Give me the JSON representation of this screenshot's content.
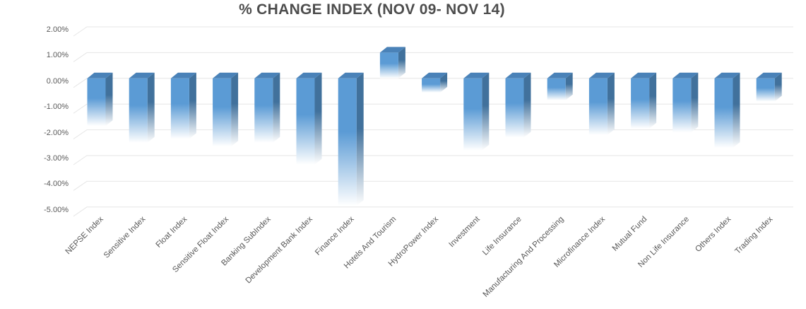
{
  "title": "% CHANGE INDEX (NOV 09- NOV 14)",
  "chart_data": {
    "type": "bar",
    "title": "% CHANGE INDEX (NOV 09- NOV 14)",
    "xlabel": "",
    "ylabel": "",
    "categories": [
      "NEPSE Index",
      "Sensitive Index",
      "Float Index",
      "Sensitive Float Index",
      "Banking SubIndex",
      "Development Bank Index",
      "Finance Index",
      "Hotels And Tourism",
      "HydroPower Index",
      "Investment",
      "Life Insurance",
      "Manufacturing And Processing",
      "Microfinance Index",
      "Mutual Fund",
      "Non Life Insurance",
      "Others Index",
      "Trading Index"
    ],
    "values": [
      -1.85,
      -2.5,
      -2.35,
      -2.65,
      -2.5,
      -3.35,
      -4.95,
      1.0,
      -0.55,
      -2.8,
      -2.3,
      -0.85,
      -2.2,
      -1.95,
      -2.1,
      -2.7,
      -0.9
    ],
    "value_unit": "percent",
    "ylim": [
      -5,
      2
    ],
    "ytick_step": 1,
    "ytick_labels": [
      "2.00%",
      "1.00%",
      "0.00%",
      "-1.00%",
      "-2.00%",
      "-3.00%",
      "-4.00%",
      "-5.00%"
    ],
    "grid": true,
    "legend": false,
    "bar_style": "3d-box-gradient-fade",
    "colors": {
      "bar_front": "#5B9BD5",
      "bar_side": "#41719C",
      "bar_top": "#4A82B8",
      "fade_to": "#FFFFFF",
      "gridline": "#E6E6E6",
      "axis_text": "#595959",
      "title_text": "#4D4D4D",
      "background": "#FFFFFF"
    }
  }
}
